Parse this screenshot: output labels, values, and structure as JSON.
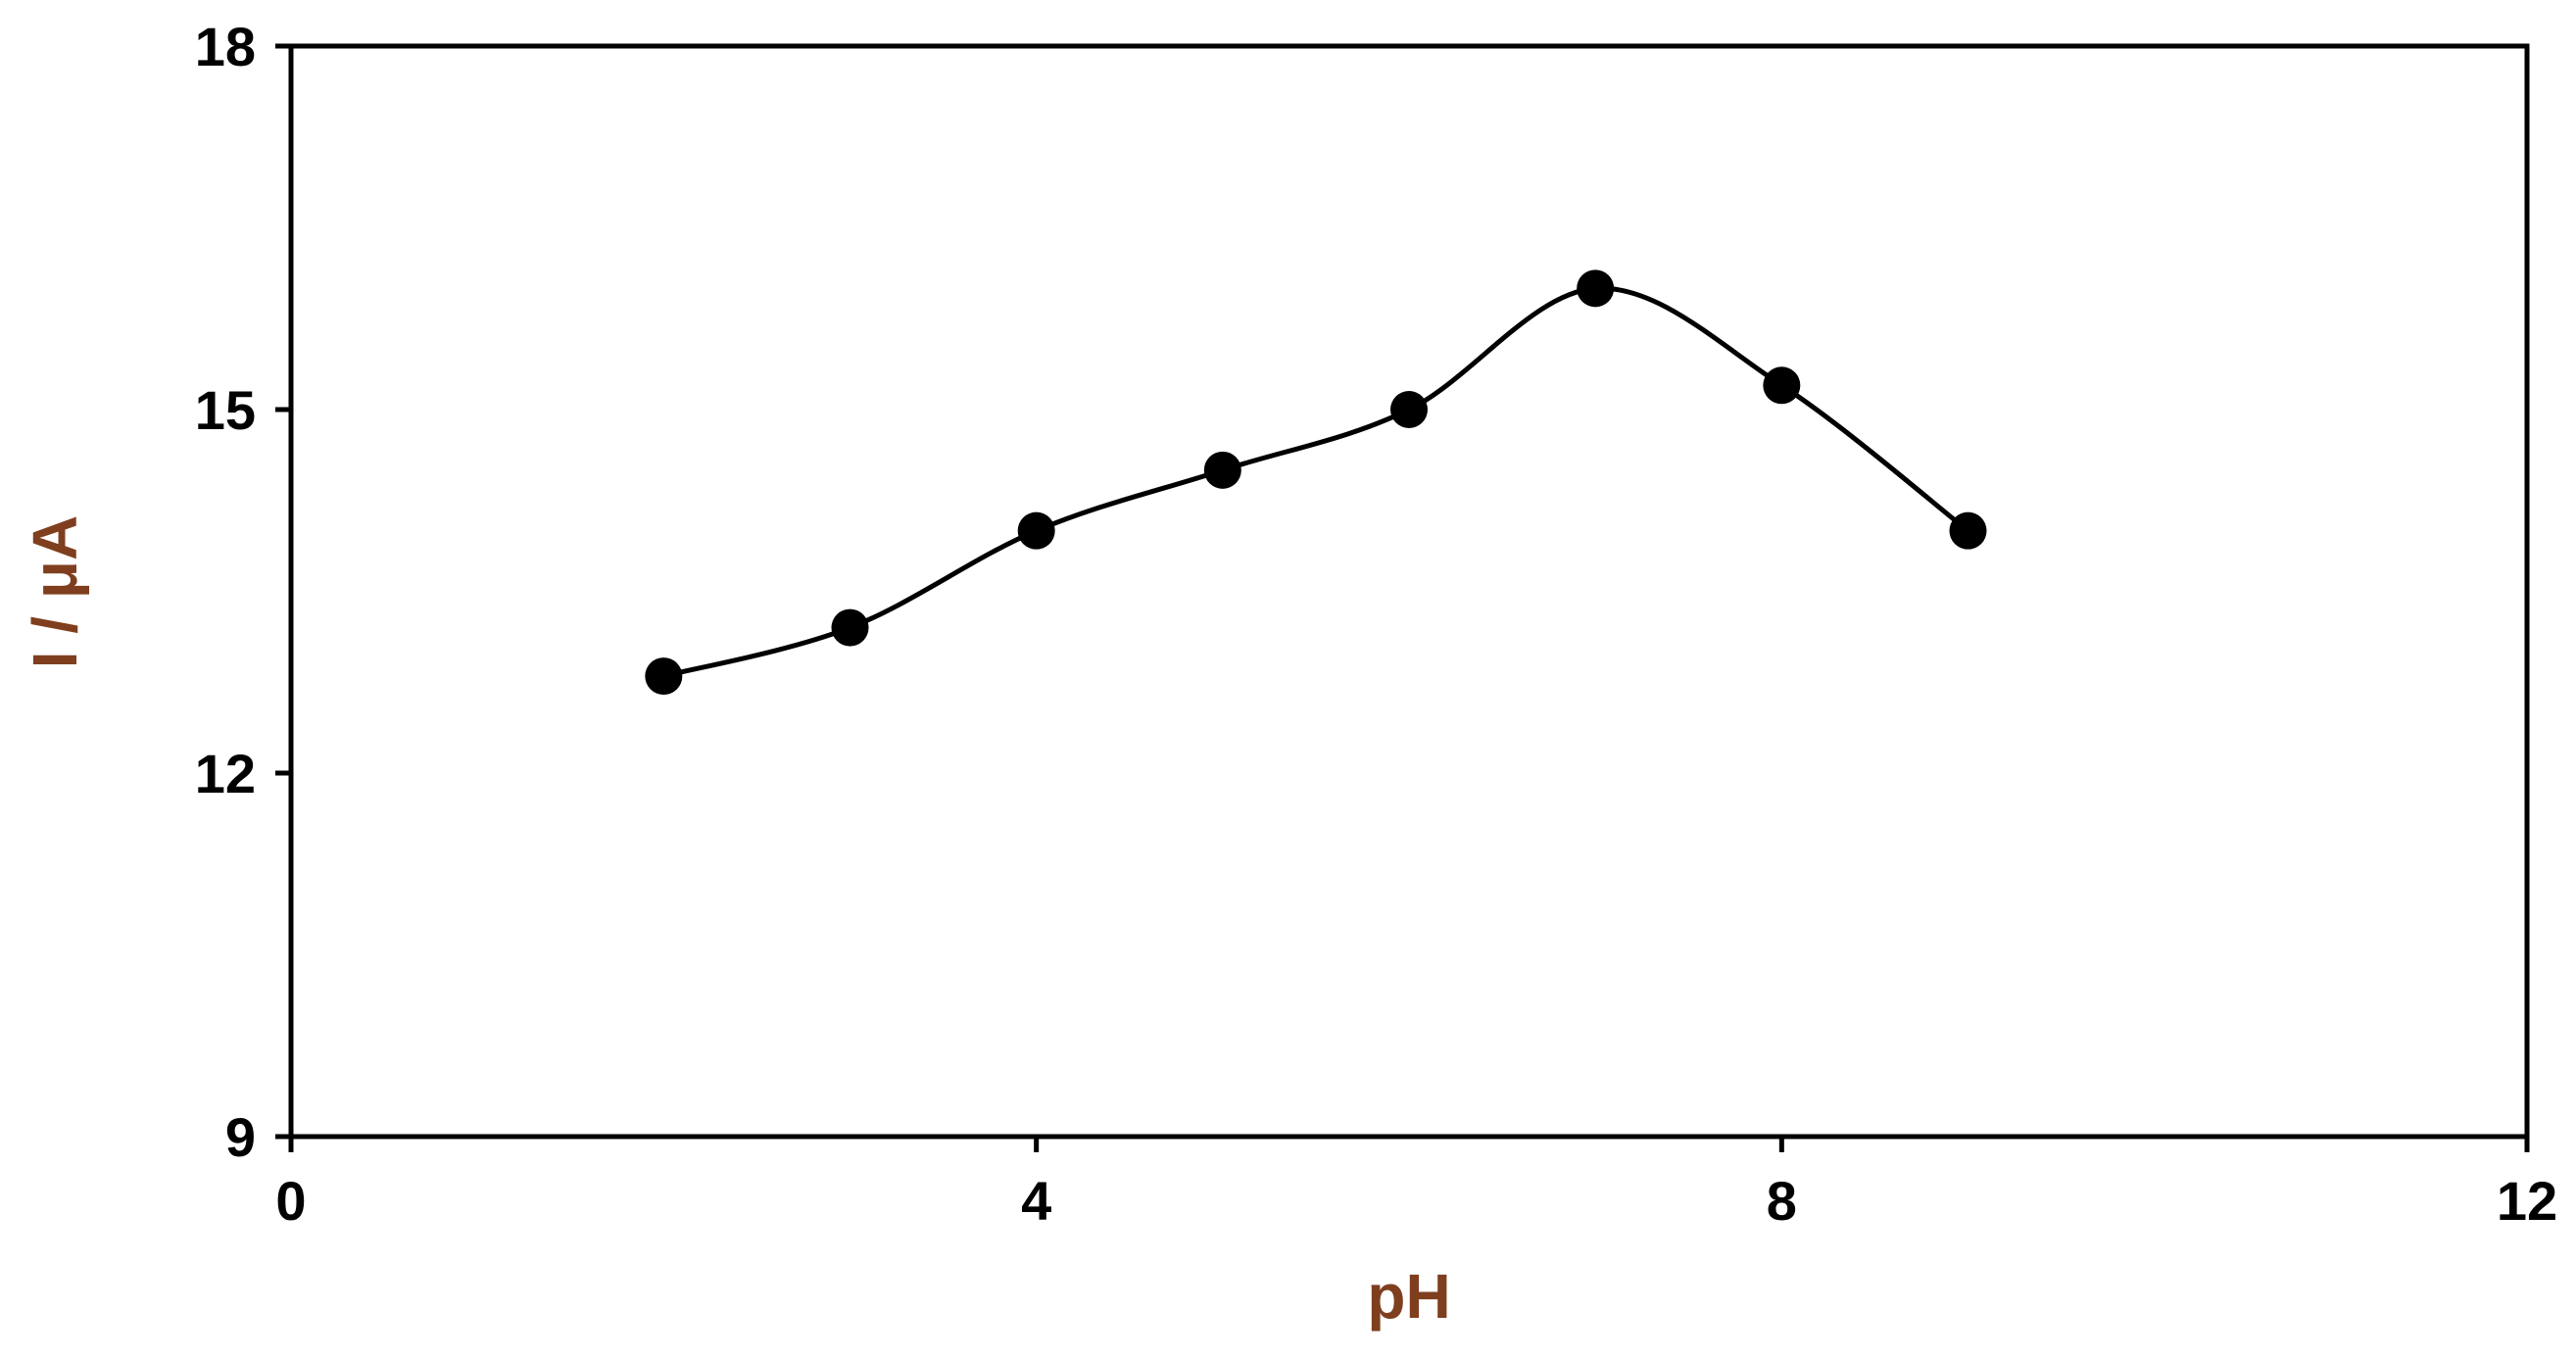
{
  "chart_data": {
    "type": "line",
    "title": "",
    "xlabel": "pH",
    "ylabel": "I / μA",
    "xlim": [
      0,
      12
    ],
    "ylim": [
      9,
      18
    ],
    "x_ticks": [
      0,
      4,
      8,
      12
    ],
    "y_ticks": [
      9,
      12,
      15,
      18
    ],
    "grid": false,
    "legend": "none",
    "smooth_line": true,
    "colors": {
      "line": "#000000",
      "marker": "#000000",
      "ylabel": "#7f3f1f",
      "xlabel": "#7f3f1f"
    },
    "series": [
      {
        "x": [
          2,
          3,
          4,
          5,
          6,
          7,
          8,
          9
        ],
        "y": [
          12.8,
          13.2,
          14.0,
          14.5,
          15.0,
          16.0,
          15.2,
          14.0
        ]
      }
    ]
  }
}
